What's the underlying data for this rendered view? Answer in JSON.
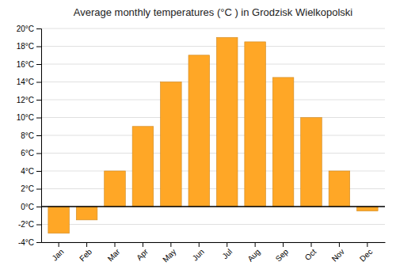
{
  "chart_data": {
    "type": "bar",
    "title": "Average monthly temperatures (°C ) in Grodzisk Wielkopolski",
    "categories": [
      "Jan",
      "Feb",
      "Mar",
      "Apr",
      "May",
      "Jun",
      "Jul",
      "Aug",
      "Sep",
      "Oct",
      "Nov",
      "Dec"
    ],
    "values": [
      -3.0,
      -1.5,
      4.0,
      9.0,
      14.0,
      17.0,
      19.0,
      18.5,
      14.5,
      10.0,
      4.0,
      -0.5
    ],
    "color": "#FFA726",
    "ylim": [
      -4,
      20
    ],
    "yticks": [
      {
        "value": -4,
        "label": "-4°C"
      },
      {
        "value": -2,
        "label": "-2°C"
      },
      {
        "value": 0,
        "label": "0°C"
      },
      {
        "value": 2,
        "label": "2°C"
      },
      {
        "value": 4,
        "label": "4°C"
      },
      {
        "value": 6,
        "label": "6°C"
      },
      {
        "value": 8,
        "label": "8°C"
      },
      {
        "value": 10,
        "label": "10°C"
      },
      {
        "value": 12,
        "label": "12°C"
      },
      {
        "value": 14,
        "label": "14°C"
      },
      {
        "value": 16,
        "label": "16°C"
      },
      {
        "value": 18,
        "label": "18°C"
      },
      {
        "value": 20,
        "label": "20°C"
      }
    ],
    "grid": true
  }
}
